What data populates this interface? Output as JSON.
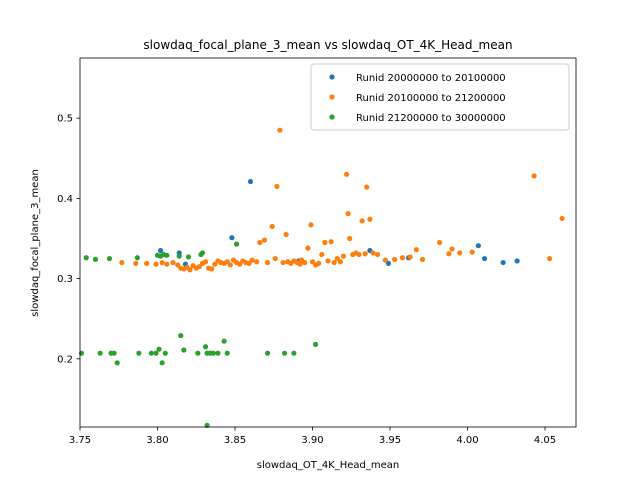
{
  "chart_data": {
    "type": "scatter",
    "title": "slowdaq_focal_plane_3_mean vs slowdaq_OT_4K_Head_mean",
    "xlabel": "slowdaq_OT_4K_Head_mean",
    "ylabel": "slowdaq_focal_plane_3_mean",
    "xlim": [
      3.75,
      4.07
    ],
    "ylim": [
      0.115,
      0.575
    ],
    "xticks": [
      "3.75",
      "3.80",
      "3.85",
      "3.90",
      "3.95",
      "4.00",
      "4.05"
    ],
    "yticks": [
      "0.2",
      "0.3",
      "0.4",
      "0.5"
    ],
    "legend_location": "upper right",
    "series": [
      {
        "name": "Runid 20000000 to 20100000",
        "color": "#1f77b4",
        "points": [
          [
            3.802,
            0.335
          ],
          [
            3.814,
            0.332
          ],
          [
            3.848,
            0.351
          ],
          [
            3.86,
            0.421
          ],
          [
            3.937,
            0.335
          ],
          [
            3.949,
            0.319
          ],
          [
            3.962,
            0.326
          ],
          [
            4.007,
            0.341
          ],
          [
            4.011,
            0.325
          ],
          [
            4.023,
            0.32
          ],
          [
            4.032,
            0.322
          ],
          [
            3.818,
            0.318
          ],
          [
            3.891,
            0.322
          ]
        ]
      },
      {
        "name": "Runid 20100000 to 21200000",
        "color": "#ff7f0e",
        "points": [
          [
            3.777,
            0.32
          ],
          [
            3.786,
            0.319
          ],
          [
            3.793,
            0.319
          ],
          [
            3.799,
            0.318
          ],
          [
            3.803,
            0.32
          ],
          [
            3.806,
            0.318
          ],
          [
            3.81,
            0.32
          ],
          [
            3.813,
            0.317
          ],
          [
            3.815,
            0.313
          ],
          [
            3.817,
            0.312
          ],
          [
            3.819,
            0.314
          ],
          [
            3.821,
            0.311
          ],
          [
            3.823,
            0.316
          ],
          [
            3.825,
            0.313
          ],
          [
            3.827,
            0.315
          ],
          [
            3.829,
            0.319
          ],
          [
            3.831,
            0.321
          ],
          [
            3.833,
            0.313
          ],
          [
            3.835,
            0.312
          ],
          [
            3.837,
            0.318
          ],
          [
            3.839,
            0.322
          ],
          [
            3.841,
            0.32
          ],
          [
            3.843,
            0.319
          ],
          [
            3.845,
            0.321
          ],
          [
            3.847,
            0.317
          ],
          [
            3.849,
            0.323
          ],
          [
            3.851,
            0.32
          ],
          [
            3.853,
            0.318
          ],
          [
            3.855,
            0.322
          ],
          [
            3.857,
            0.32
          ],
          [
            3.859,
            0.319
          ],
          [
            3.861,
            0.323
          ],
          [
            3.864,
            0.321
          ],
          [
            3.866,
            0.345
          ],
          [
            3.869,
            0.348
          ],
          [
            3.871,
            0.32
          ],
          [
            3.874,
            0.365
          ],
          [
            3.876,
            0.325
          ],
          [
            3.877,
            0.415
          ],
          [
            3.879,
            0.485
          ],
          [
            3.881,
            0.32
          ],
          [
            3.883,
            0.355
          ],
          [
            3.884,
            0.321
          ],
          [
            3.886,
            0.319
          ],
          [
            3.888,
            0.322
          ],
          [
            3.89,
            0.32
          ],
          [
            3.892,
            0.318
          ],
          [
            3.893,
            0.323
          ],
          [
            3.895,
            0.32
          ],
          [
            3.897,
            0.338
          ],
          [
            3.899,
            0.367
          ],
          [
            3.9,
            0.321
          ],
          [
            3.902,
            0.317
          ],
          [
            3.904,
            0.319
          ],
          [
            3.906,
            0.33
          ],
          [
            3.908,
            0.345
          ],
          [
            3.91,
            0.322
          ],
          [
            3.912,
            0.346
          ],
          [
            3.914,
            0.32
          ],
          [
            3.916,
            0.325
          ],
          [
            3.918,
            0.321
          ],
          [
            3.92,
            0.328
          ],
          [
            3.922,
            0.43
          ],
          [
            3.923,
            0.381
          ],
          [
            3.924,
            0.35
          ],
          [
            3.926,
            0.33
          ],
          [
            3.928,
            0.332
          ],
          [
            3.93,
            0.33
          ],
          [
            3.932,
            0.372
          ],
          [
            3.934,
            0.331
          ],
          [
            3.935,
            0.414
          ],
          [
            3.937,
            0.374
          ],
          [
            3.939,
            0.332
          ],
          [
            3.942,
            0.33
          ],
          [
            3.947,
            0.323
          ],
          [
            3.953,
            0.324
          ],
          [
            3.958,
            0.326
          ],
          [
            3.963,
            0.327
          ],
          [
            3.967,
            0.336
          ],
          [
            3.971,
            0.324
          ],
          [
            3.982,
            0.345
          ],
          [
            3.988,
            0.331
          ],
          [
            3.99,
            0.337
          ],
          [
            3.995,
            0.332
          ],
          [
            4.003,
            0.333
          ],
          [
            4.043,
            0.428
          ],
          [
            4.053,
            0.325
          ],
          [
            4.061,
            0.375
          ]
        ]
      },
      {
        "name": "Runid 21200000 to 30000000",
        "color": "#2ca02c",
        "points": [
          [
            3.751,
            0.207
          ],
          [
            3.754,
            0.326
          ],
          [
            3.76,
            0.324
          ],
          [
            3.763,
            0.207
          ],
          [
            3.769,
            0.325
          ],
          [
            3.77,
            0.207
          ],
          [
            3.772,
            0.207
          ],
          [
            3.774,
            0.195
          ],
          [
            3.787,
            0.326
          ],
          [
            3.788,
            0.207
          ],
          [
            3.796,
            0.207
          ],
          [
            3.799,
            0.207
          ],
          [
            3.8,
            0.329
          ],
          [
            3.801,
            0.212
          ],
          [
            3.802,
            0.328
          ],
          [
            3.803,
            0.195
          ],
          [
            3.804,
            0.33
          ],
          [
            3.805,
            0.207
          ],
          [
            3.806,
            0.329
          ],
          [
            3.814,
            0.328
          ],
          [
            3.815,
            0.229
          ],
          [
            3.817,
            0.211
          ],
          [
            3.82,
            0.327
          ],
          [
            3.826,
            0.207
          ],
          [
            3.828,
            0.33
          ],
          [
            3.829,
            0.332
          ],
          [
            3.831,
            0.215
          ],
          [
            3.832,
            0.207
          ],
          [
            3.834,
            0.207
          ],
          [
            3.836,
            0.207
          ],
          [
            3.839,
            0.207
          ],
          [
            3.843,
            0.222
          ],
          [
            3.845,
            0.207
          ],
          [
            3.851,
            0.343
          ],
          [
            3.871,
            0.207
          ],
          [
            3.882,
            0.207
          ],
          [
            3.888,
            0.207
          ],
          [
            3.902,
            0.218
          ],
          [
            3.832,
            0.117
          ]
        ]
      }
    ]
  }
}
